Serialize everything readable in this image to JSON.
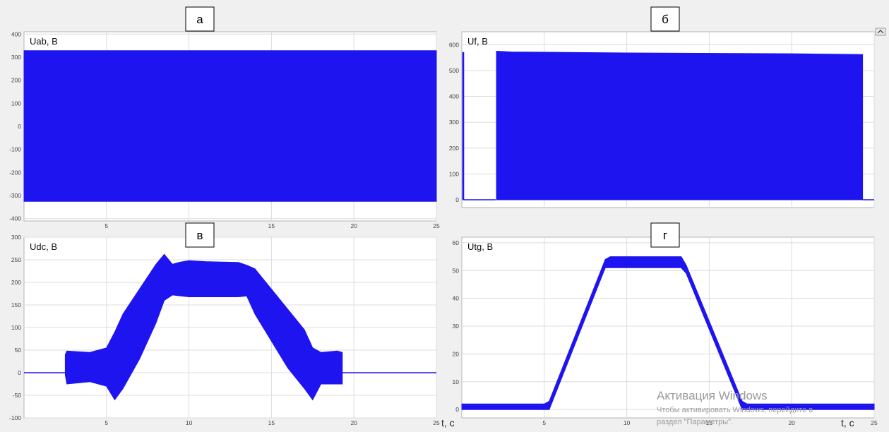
{
  "chart_data": [
    {
      "type": "line",
      "panel_label": "а",
      "ylabel": "Uab, В",
      "xlim": [
        0,
        25
      ],
      "ylim": [
        -410,
        410
      ],
      "yticks": [
        -400,
        -300,
        -200,
        -100,
        0,
        100,
        200,
        300,
        400
      ],
      "xticks": [
        5,
        10,
        15,
        20,
        25
      ],
      "xtick_labels": [
        "5",
        "10",
        "15",
        "20",
        "25"
      ],
      "grid": true,
      "series": [
        {
          "kind": "band",
          "x": [
            0,
            25
          ],
          "upper": [
            328,
            328
          ],
          "lower": [
            -325,
            -325
          ]
        }
      ]
    },
    {
      "type": "line",
      "panel_label": "б",
      "ylabel": "Uf, В",
      "xlim": [
        0,
        25
      ],
      "ylim": [
        -30,
        650
      ],
      "yticks": [
        0,
        100,
        200,
        300,
        400,
        500,
        600
      ],
      "grid": true,
      "series": [
        {
          "kind": "band",
          "x": [
            0.05,
            0.12
          ],
          "upper": [
            570,
            570
          ],
          "lower": [
            0,
            0
          ]
        },
        {
          "kind": "line",
          "x": [
            0.12,
            2.05
          ],
          "y": [
            0,
            0
          ]
        },
        {
          "kind": "band",
          "x": [
            2.1,
            3,
            10,
            20,
            24.3
          ],
          "upper": [
            575,
            572,
            568,
            565,
            562
          ],
          "lower": [
            0,
            0,
            0,
            0,
            0
          ]
        },
        {
          "kind": "line",
          "x": [
            24.3,
            25
          ],
          "y": [
            0,
            0
          ]
        }
      ]
    },
    {
      "type": "line",
      "panel_label": "в",
      "ylabel": "Udc, В",
      "xlim": [
        0,
        25
      ],
      "ylim": [
        -100,
        300
      ],
      "yticks": [
        -100,
        -50,
        0,
        50,
        100,
        150,
        200,
        250,
        300
      ],
      "xticks": [
        5,
        10,
        15,
        20,
        25
      ],
      "xtick_labels": [
        "5",
        "10",
        "15",
        "20",
        "25"
      ],
      "grid": true,
      "series": [
        {
          "kind": "line",
          "x": [
            0,
            2.5
          ],
          "y": [
            0,
            0
          ]
        },
        {
          "kind": "band",
          "x": [
            2.5,
            2.6,
            4.0,
            5.0,
            5.5,
            6.0,
            7.0,
            8.0,
            8.5,
            9.0,
            9.5,
            10,
            11,
            12,
            13,
            13.5,
            14,
            15,
            16,
            17,
            17.5,
            18,
            19,
            19.3
          ],
          "upper": [
            40,
            48,
            45,
            55,
            90,
            130,
            185,
            240,
            262,
            240,
            245,
            248,
            246,
            245,
            244,
            238,
            230,
            185,
            140,
            95,
            55,
            45,
            48,
            45
          ],
          "lower": [
            -5,
            -25,
            -20,
            -30,
            -60,
            -35,
            30,
            110,
            160,
            172,
            170,
            168,
            168,
            168,
            168,
            170,
            130,
            70,
            10,
            -35,
            -60,
            -25,
            -25,
            -25
          ]
        },
        {
          "kind": "line",
          "x": [
            19.3,
            25
          ],
          "y": [
            0,
            0
          ]
        }
      ]
    },
    {
      "type": "line",
      "panel_label": "г",
      "ylabel": "Utg, В",
      "xlim": [
        0,
        25
      ],
      "ylim": [
        -3,
        62
      ],
      "yticks": [
        0,
        10,
        20,
        30,
        40,
        50,
        60
      ],
      "xticks": [
        5,
        10,
        15,
        20,
        25
      ],
      "xtick_labels": [
        "5",
        "10",
        "15",
        "20",
        "25"
      ],
      "grid": true,
      "series": [
        {
          "kind": "band",
          "x": [
            0,
            5.0,
            5.3,
            8.7,
            9.0,
            13.3,
            13.6,
            17.0,
            17.3,
            25
          ],
          "upper": [
            2,
            2,
            3,
            54,
            55,
            55,
            52,
            3,
            2,
            2
          ],
          "lower": [
            0,
            0,
            0,
            51,
            51,
            51,
            49,
            0,
            0,
            0
          ]
        }
      ]
    }
  ],
  "axis_title_x": "t, с",
  "watermark": {
    "title": "Активация Windows",
    "line1": "Чтобы активировать Windows, перейдите в",
    "line2": "раздел \"Параметры\"."
  },
  "colors": {
    "signal": "#1e14f0",
    "grid": "#dcdcdc",
    "axes_bg": "#ffffff",
    "page_bg": "#f0f0f0"
  }
}
